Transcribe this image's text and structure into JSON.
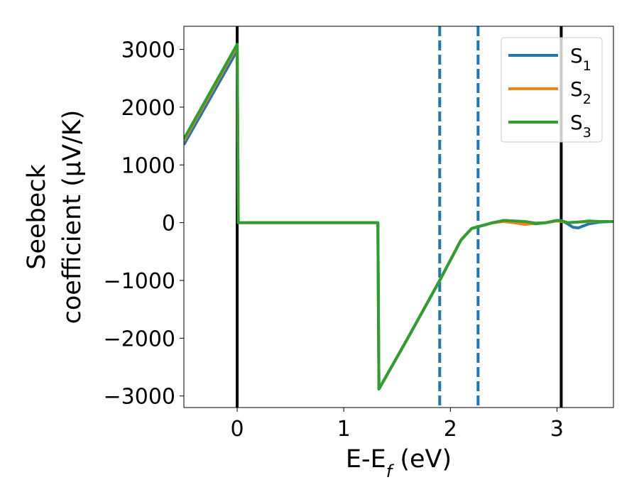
{
  "chart_data": {
    "type": "line",
    "title": "",
    "xlabel": {
      "base": "E-E",
      "sub": "f",
      "unit": " (eV)"
    },
    "ylabel": {
      "line1": "Seebeck",
      "line2": "coefficient  (μV/K)"
    },
    "xlim": [
      -0.5,
      3.53
    ],
    "ylim": [
      -3200,
      3400
    ],
    "xticks": [
      0,
      1,
      2,
      3
    ],
    "xtick_labels": [
      "0",
      "1",
      "2",
      "3"
    ],
    "yticks": [
      -3000,
      -2000,
      -1000,
      0,
      1000,
      2000,
      3000
    ],
    "ytick_labels": [
      "−3000",
      "−2000",
      "−1000",
      "0",
      "1000",
      "2000",
      "3000"
    ],
    "grid": false,
    "legend_position": "top-right",
    "vlines": [
      {
        "x": 0.0,
        "style": "solid",
        "color": "#000000"
      },
      {
        "x": 1.9,
        "style": "dashed",
        "color": "#1f77b4"
      },
      {
        "x": 2.26,
        "style": "dashed",
        "color": "#1f77b4"
      },
      {
        "x": 3.04,
        "style": "solid",
        "color": "#000000"
      }
    ],
    "series": [
      {
        "name": {
          "base": "S",
          "sub": "1"
        },
        "color": "#1f77b4",
        "x": [
          -0.5,
          0.0,
          0.01,
          1.32,
          1.33,
          1.6,
          1.9,
          2.1,
          2.2,
          2.3,
          2.4,
          2.5,
          2.6,
          2.7,
          2.8,
          2.9,
          3.0,
          3.05,
          3.1,
          3.15,
          3.2,
          3.3,
          3.4,
          3.53
        ],
        "y": [
          1350,
          2980,
          0,
          0,
          -2880,
          -2000,
          -1000,
          -300,
          -100,
          -50,
          0,
          30,
          10,
          -10,
          -20,
          0,
          40,
          30,
          -20,
          -80,
          -90,
          -20,
          10,
          20
        ]
      },
      {
        "name": {
          "base": "S",
          "sub": "2"
        },
        "color": "#ff7f0e",
        "x": [
          -0.5,
          0.0,
          0.01,
          1.32,
          1.33,
          1.6,
          1.9,
          2.1,
          2.2,
          2.3,
          2.4,
          2.5,
          2.6,
          2.7,
          2.8,
          2.9,
          3.0,
          3.05,
          3.1,
          3.2,
          3.3,
          3.4,
          3.53
        ],
        "y": [
          1420,
          3060,
          0,
          0,
          -2880,
          -2000,
          -1000,
          -300,
          -100,
          -50,
          0,
          20,
          0,
          -30,
          -10,
          0,
          30,
          20,
          0,
          10,
          20,
          20,
          20
        ]
      },
      {
        "name": {
          "base": "S",
          "sub": "3"
        },
        "color": "#2ca02c",
        "x": [
          -0.5,
          0.0,
          0.01,
          1.32,
          1.33,
          1.6,
          1.9,
          2.1,
          2.2,
          2.3,
          2.4,
          2.5,
          2.6,
          2.7,
          2.8,
          2.9,
          3.0,
          3.05,
          3.1,
          3.2,
          3.3,
          3.4,
          3.53
        ],
        "y": [
          1450,
          3090,
          0,
          0,
          -2880,
          -2000,
          -1000,
          -300,
          -100,
          -50,
          0,
          40,
          30,
          20,
          -10,
          0,
          40,
          30,
          0,
          10,
          30,
          20,
          20
        ]
      }
    ]
  }
}
